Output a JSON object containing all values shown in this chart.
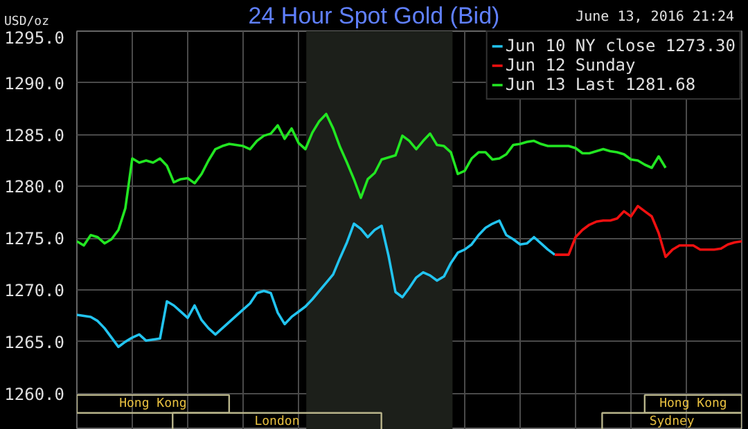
{
  "chart_data": {
    "type": "line",
    "title": "24 Hour Spot Gold (Bid)",
    "ylabel": "USD/oz",
    "annotations": [
      "June 13, 2016 21:24",
      "Hong Kong",
      "London",
      "Hong Kong",
      "Sydney"
    ],
    "categories": [
      null,
      null,
      null,
      null,
      null,
      null,
      null,
      null,
      null,
      null,
      null,
      null,
      null,
      null,
      null,
      null,
      null,
      null,
      null,
      null,
      null,
      null,
      null,
      null,
      null,
      null,
      null,
      null,
      null,
      null,
      null,
      null,
      null,
      null,
      null,
      null,
      null,
      null,
      null,
      null,
      null,
      null,
      null,
      null,
      null,
      null,
      null,
      null,
      null,
      null,
      null,
      null,
      null,
      null,
      null,
      null,
      null,
      null,
      null,
      null,
      null,
      null,
      null,
      null,
      null,
      null,
      null,
      null,
      null,
      null,
      null,
      null,
      null,
      null,
      null,
      null,
      null,
      null,
      null,
      null,
      null,
      null,
      null,
      null,
      null,
      null,
      null,
      null,
      null,
      null,
      null,
      null,
      null,
      null,
      null,
      null,
      null
    ],
    "ylim": [
      1256.5,
      1295
    ],
    "yticks": [
      {
        "value": 1260,
        "label": "1260.0"
      },
      {
        "value": 1265,
        "label": "1265.0"
      },
      {
        "value": 1270,
        "label": "1270.0"
      },
      {
        "value": 1275,
        "label": "1275.0"
      },
      {
        "value": 1280,
        "label": "1280.0"
      },
      {
        "value": 1285,
        "label": "1285.0"
      },
      {
        "value": 1290,
        "label": "1290.0"
      },
      {
        "value": 1295,
        "label": "1295.0"
      }
    ],
    "tick_labels": "y",
    "grid": true,
    "legend": "top right",
    "marker": "none",
    "line_style": "solid",
    "series": [
      {
        "name": "Jun 10 NY close 1273.30",
        "color": "#22c4f0",
        "values": [
          1267.6,
          1267.5,
          1267.4,
          1267.0,
          1266.3,
          1265.4,
          1264.5,
          1265.0,
          1265.4,
          1265.7,
          1265.1,
          1265.2,
          1265.3,
          1268.9,
          1268.5,
          1267.9,
          1267.3,
          1268.5,
          1267.1,
          1266.3,
          1265.7,
          1266.3,
          1266.9,
          1267.5,
          1268.1,
          1268.7,
          1269.7,
          1269.9,
          1269.7,
          1267.8,
          1266.7,
          1267.4,
          1267.9,
          1268.4,
          1269.1,
          1269.9,
          1270.7,
          1271.5,
          1273.1,
          1274.6,
          1276.4,
          1275.9,
          1275.1,
          1275.8,
          1276.2,
          1273.3,
          1269.8,
          1269.3,
          1270.2,
          1271.2,
          1271.7,
          1271.4,
          1270.9,
          1271.3,
          1272.6,
          1273.6,
          1273.9,
          1274.4,
          1275.3,
          1276.0,
          1276.4,
          1276.7,
          1275.3,
          1274.9,
          1274.4,
          1274.5,
          1275.1,
          1274.5,
          1273.9,
          1273.4,
          null,
          null,
          null,
          null,
          null,
          null,
          null,
          null,
          null,
          null,
          null,
          null,
          null,
          null,
          null,
          null,
          null,
          null,
          null,
          null,
          null,
          null,
          null,
          null,
          null,
          null,
          null
        ]
      },
      {
        "name": "Jun 12 Sunday",
        "color": "#f01010",
        "values": [
          null,
          null,
          null,
          null,
          null,
          null,
          null,
          null,
          null,
          null,
          null,
          null,
          null,
          null,
          null,
          null,
          null,
          null,
          null,
          null,
          null,
          null,
          null,
          null,
          null,
          null,
          null,
          null,
          null,
          null,
          null,
          null,
          null,
          null,
          null,
          null,
          null,
          null,
          null,
          null,
          null,
          null,
          null,
          null,
          null,
          null,
          null,
          null,
          null,
          null,
          null,
          null,
          null,
          null,
          null,
          null,
          null,
          null,
          null,
          null,
          null,
          null,
          null,
          null,
          null,
          null,
          null,
          null,
          null,
          1273.4,
          1273.4,
          1273.4,
          1275.1,
          1275.8,
          1276.3,
          1276.6,
          1276.7,
          1276.7,
          1276.9,
          1277.6,
          1277.1,
          1278.1,
          1277.6,
          1277.1,
          1275.5,
          1273.2,
          1273.9,
          1274.3,
          1274.3,
          1274.3,
          1273.9,
          1273.9,
          1273.9,
          1274.0,
          1274.4,
          1274.6,
          1274.7
        ]
      },
      {
        "name": "Jun 13 Last 1281.68",
        "color": "#22e622",
        "values": [
          1274.7,
          1274.3,
          1275.3,
          1275.1,
          1274.5,
          1274.9,
          1275.8,
          1277.9,
          1282.7,
          1282.3,
          1282.5,
          1282.3,
          1282.7,
          1282.0,
          1280.4,
          1280.7,
          1280.8,
          1280.3,
          1281.2,
          1282.5,
          1283.6,
          1283.9,
          1284.1,
          1284.0,
          1283.9,
          1283.6,
          1284.4,
          1284.9,
          1285.1,
          1285.9,
          1284.6,
          1285.6,
          1284.2,
          1283.6,
          1285.2,
          1286.3,
          1287.0,
          1285.6,
          1283.8,
          1282.3,
          1280.7,
          1278.9,
          1280.7,
          1281.3,
          1282.6,
          1282.8,
          1283.0,
          1284.9,
          1284.4,
          1283.6,
          1284.4,
          1285.1,
          1284.0,
          1283.9,
          1283.3,
          1281.2,
          1281.5,
          1282.7,
          1283.3,
          1283.3,
          1282.6,
          1282.7,
          1283.1,
          1284.0,
          1284.1,
          1284.3,
          1284.4,
          1284.1,
          1283.9,
          1283.9,
          1283.9,
          1283.9,
          1283.7,
          1283.2,
          1283.2,
          1283.4,
          1283.6,
          1283.4,
          1283.3,
          1283.1,
          1282.6,
          1282.5,
          1282.1,
          1281.8,
          1282.9,
          1281.8,
          null,
          null,
          null,
          null,
          null,
          null,
          null,
          null,
          null,
          null,
          null
        ]
      }
    ]
  }
}
